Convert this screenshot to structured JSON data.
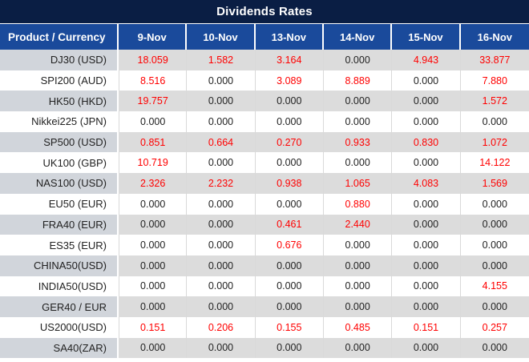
{
  "title": "Dividends Rates",
  "table": {
    "product_column_header": "Product / Currency",
    "date_columns": [
      "9-Nov",
      "10-Nov",
      "13-Nov",
      "14-Nov",
      "15-Nov",
      "16-Nov"
    ],
    "zero_value": "0.000",
    "rows": [
      {
        "product": "DJ30 (USD)",
        "values": [
          "18.059",
          "1.582",
          "3.164",
          "0.000",
          "4.943",
          "33.877"
        ]
      },
      {
        "product": "SPI200 (AUD)",
        "values": [
          "8.516",
          "0.000",
          "3.089",
          "8.889",
          "0.000",
          "7.880"
        ]
      },
      {
        "product": "HK50 (HKD)",
        "values": [
          "19.757",
          "0.000",
          "0.000",
          "0.000",
          "0.000",
          "1.572"
        ]
      },
      {
        "product": "Nikkei225 (JPN)",
        "values": [
          "0.000",
          "0.000",
          "0.000",
          "0.000",
          "0.000",
          "0.000"
        ]
      },
      {
        "product": "SP500 (USD)",
        "values": [
          "0.851",
          "0.664",
          "0.270",
          "0.933",
          "0.830",
          "1.072"
        ]
      },
      {
        "product": "UK100 (GBP)",
        "values": [
          "10.719",
          "0.000",
          "0.000",
          "0.000",
          "0.000",
          "14.122"
        ]
      },
      {
        "product": "NAS100 (USD)",
        "values": [
          "2.326",
          "2.232",
          "0.938",
          "1.065",
          "4.083",
          "1.569"
        ]
      },
      {
        "product": "EU50 (EUR)",
        "values": [
          "0.000",
          "0.000",
          "0.000",
          "0.880",
          "0.000",
          "0.000"
        ]
      },
      {
        "product": "FRA40 (EUR)",
        "values": [
          "0.000",
          "0.000",
          "0.461",
          "2.440",
          "0.000",
          "0.000"
        ]
      },
      {
        "product": "ES35 (EUR)",
        "values": [
          "0.000",
          "0.000",
          "0.676",
          "0.000",
          "0.000",
          "0.000"
        ]
      },
      {
        "product": "CHINA50(USD)",
        "values": [
          "0.000",
          "0.000",
          "0.000",
          "0.000",
          "0.000",
          "0.000"
        ]
      },
      {
        "product": "INDIA50(USD)",
        "values": [
          "0.000",
          "0.000",
          "0.000",
          "0.000",
          "0.000",
          "4.155"
        ]
      },
      {
        "product": "GER40 / EUR",
        "values": [
          "0.000",
          "0.000",
          "0.000",
          "0.000",
          "0.000",
          "0.000"
        ]
      },
      {
        "product": "US2000(USD)",
        "values": [
          "0.151",
          "0.206",
          "0.155",
          "0.485",
          "0.151",
          "0.257"
        ]
      },
      {
        "product": "SA40(ZAR)",
        "values": [
          "0.000",
          "0.000",
          "0.000",
          "0.000",
          "0.000",
          "0.000"
        ]
      }
    ]
  },
  "colors": {
    "title_bar_bg": "#0a1e44",
    "header_bg": "#1a4a9b",
    "header_text": "#ffffff",
    "stripe_values_bg": "#dcdcdc",
    "stripe_product_bg": "#d1d5db",
    "nonzero_value_color": "#ff0000",
    "zero_value_color": "#222222",
    "gridline_color": "#d9d9d9"
  }
}
